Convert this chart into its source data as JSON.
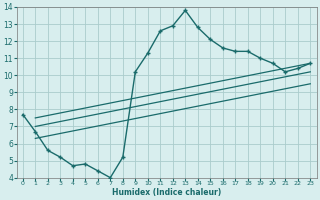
{
  "xlabel": "Humidex (Indice chaleur)",
  "bg_color": "#d8eeee",
  "grid_color": "#aacccc",
  "line_color": "#1a6b6b",
  "xlim": [
    -0.5,
    23.5
  ],
  "ylim": [
    4,
    14
  ],
  "xticks": [
    0,
    1,
    2,
    3,
    4,
    5,
    6,
    7,
    8,
    9,
    10,
    11,
    12,
    13,
    14,
    15,
    16,
    17,
    18,
    19,
    20,
    21,
    22,
    23
  ],
  "yticks": [
    4,
    5,
    6,
    7,
    8,
    9,
    10,
    11,
    12,
    13,
    14
  ],
  "curve1_x": [
    0,
    1,
    2,
    3,
    4,
    5,
    6,
    7,
    8,
    9,
    10,
    11,
    12,
    13,
    14,
    15,
    16,
    17,
    18,
    19,
    20,
    21,
    22,
    23
  ],
  "curve1_y": [
    7.7,
    6.7,
    5.6,
    5.2,
    4.7,
    4.8,
    4.4,
    4.0,
    5.2,
    10.2,
    11.3,
    12.6,
    12.9,
    13.8,
    12.8,
    12.1,
    11.6,
    11.4,
    11.4,
    11.0,
    10.7,
    10.2,
    10.4,
    10.7
  ],
  "line2_x": [
    1,
    23
  ],
  "line2_y": [
    7.5,
    10.7
  ],
  "line3_x": [
    1,
    23
  ],
  "line3_y": [
    7.0,
    10.2
  ],
  "line4_x": [
    1,
    23
  ],
  "line4_y": [
    6.3,
    9.5
  ]
}
